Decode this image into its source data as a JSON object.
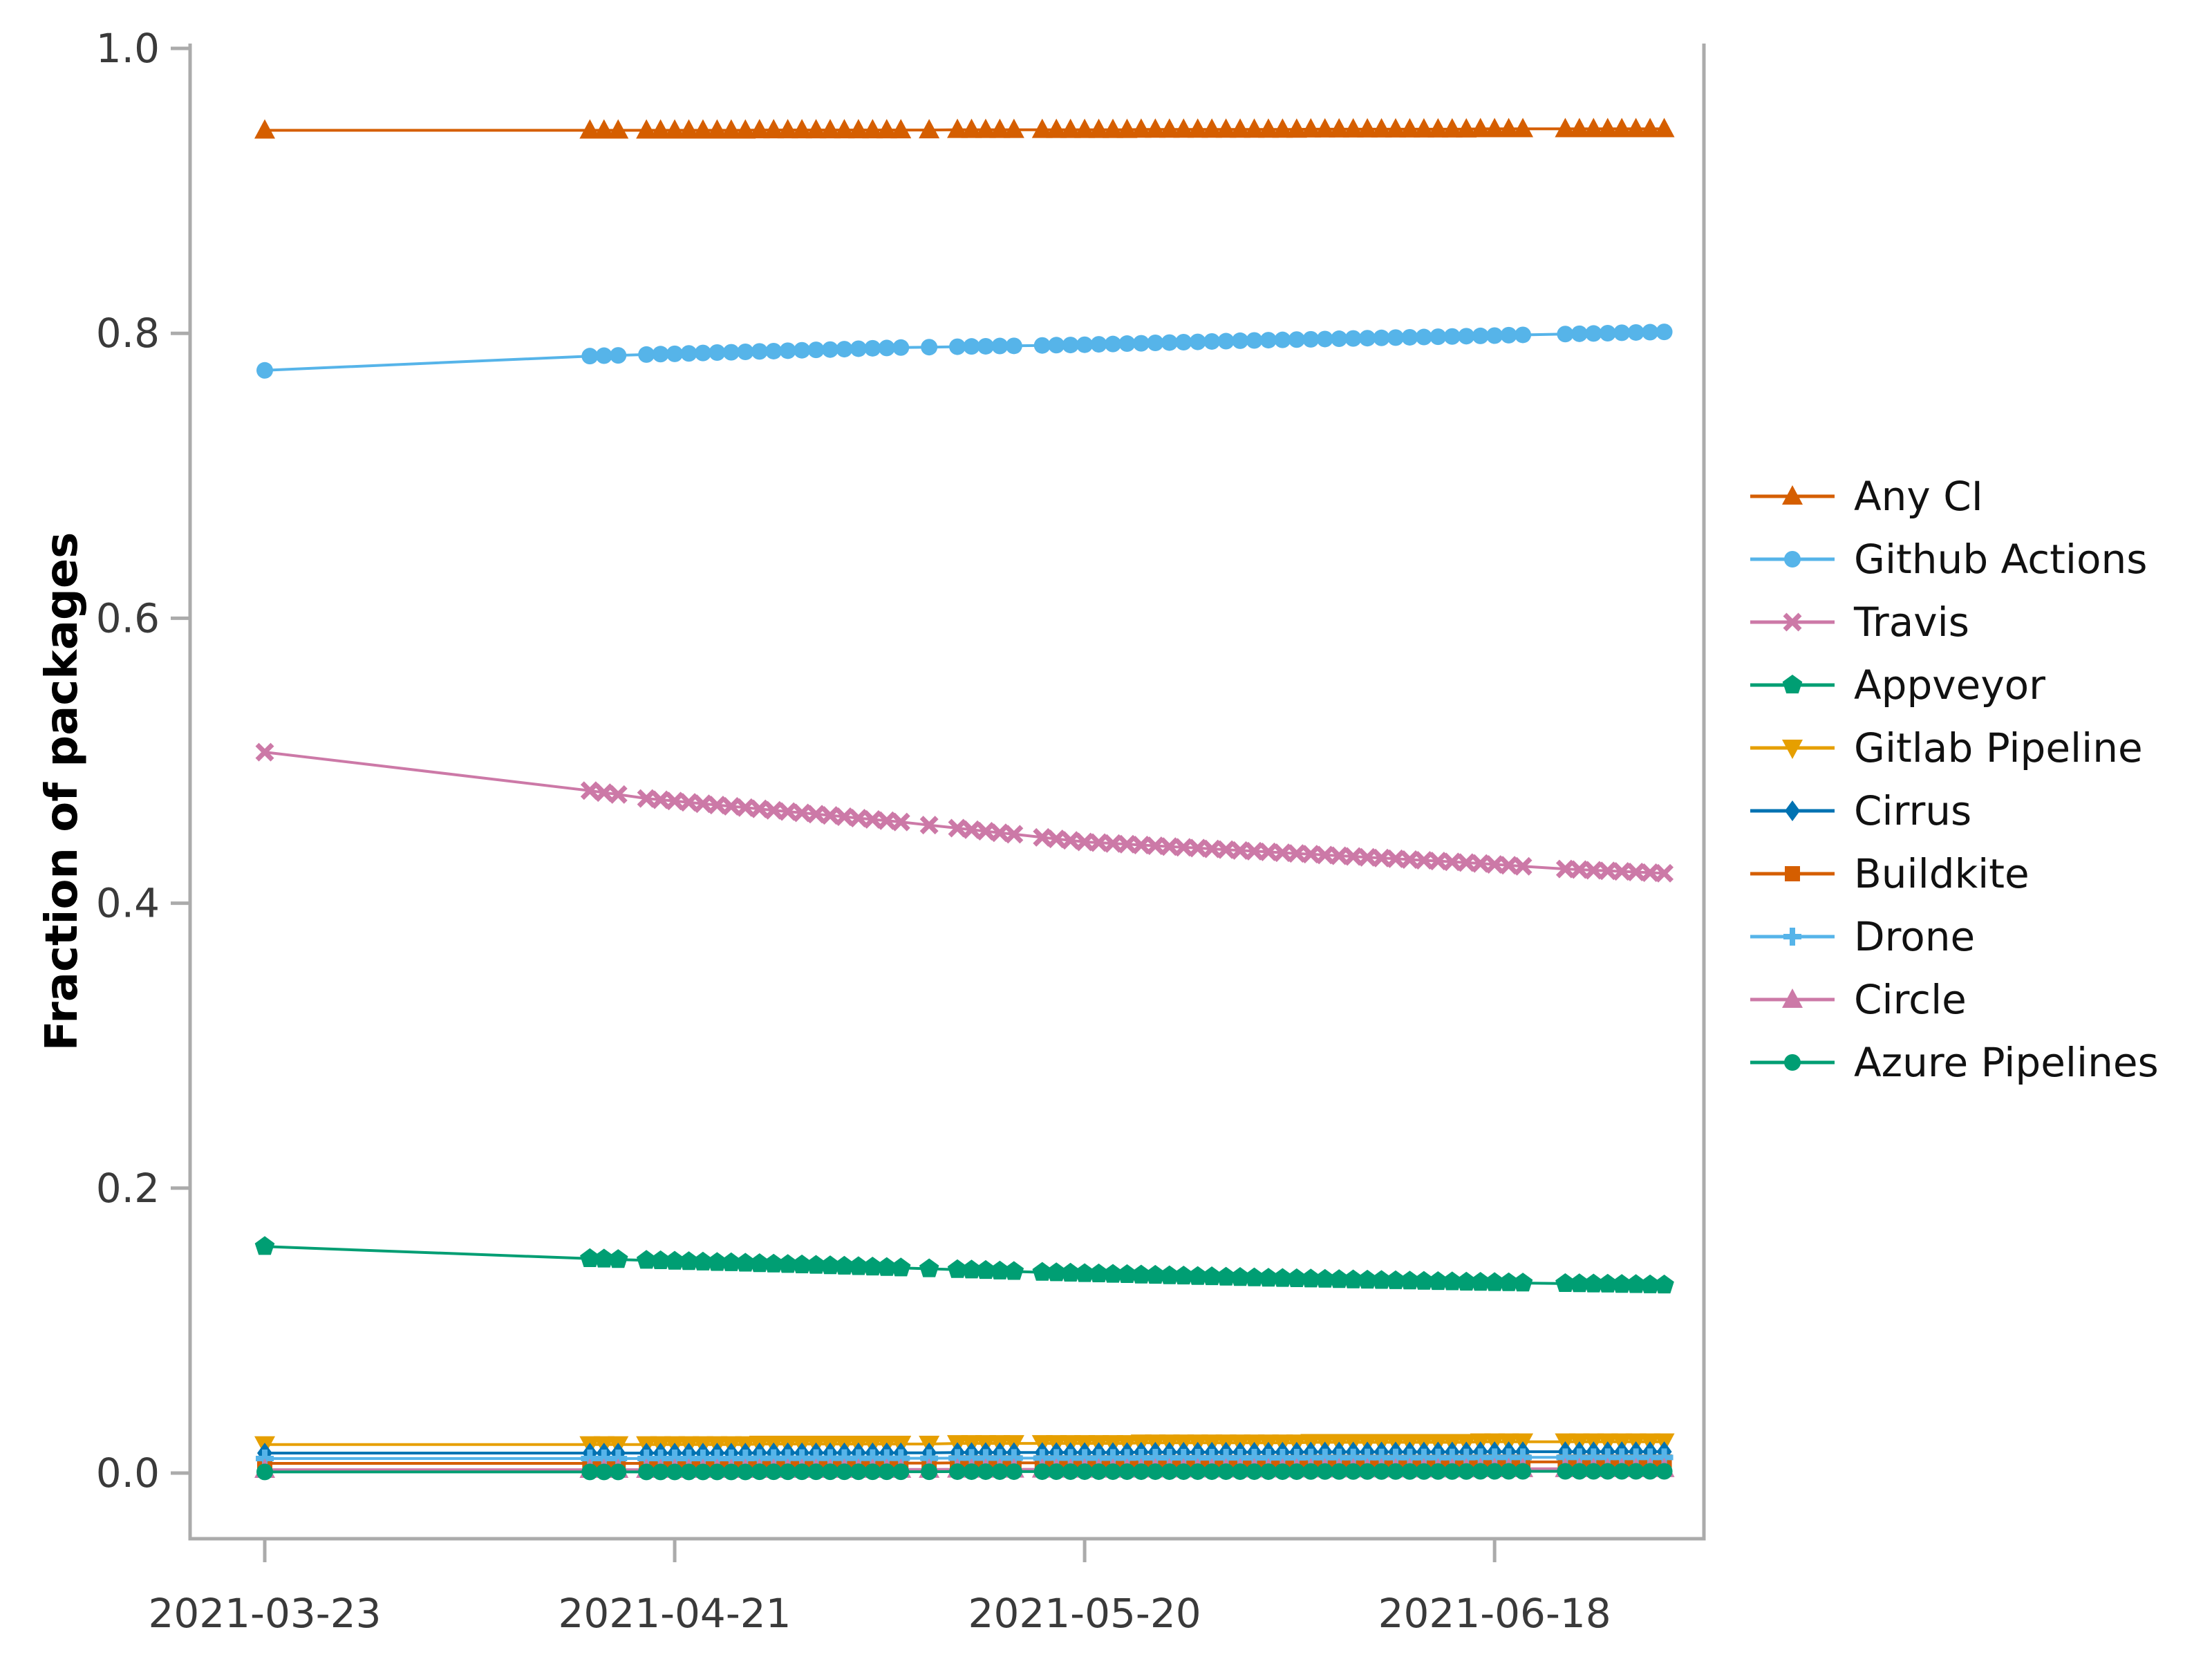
{
  "figure": {
    "ylabel": "Fraction of packages"
  },
  "axis": {
    "y_ticks": [
      "0.0",
      "0.2",
      "0.4",
      "0.6",
      "0.8",
      "1.0"
    ],
    "y_tick_values": [
      0.0,
      0.2,
      0.4,
      0.6,
      0.8,
      1.0
    ],
    "x_ticks": [
      "2021-03-23",
      "2021-04-21",
      "2021-05-20",
      "2021-06-18"
    ],
    "spine_color": "#ababab",
    "tick_color": "#ababab",
    "tick_label_color": "#3a3a3a"
  },
  "chart_data": {
    "type": "line",
    "title": "",
    "xlabel": "",
    "ylabel": "Fraction of packages",
    "ylim": [
      0.0,
      1.0
    ],
    "grid": false,
    "legend_position": "right",
    "x": [
      "2021-03-23",
      "2021-04-15",
      "2021-04-16",
      "2021-04-17",
      "2021-04-19",
      "2021-04-20",
      "2021-04-21",
      "2021-04-22",
      "2021-04-23",
      "2021-04-24",
      "2021-04-25",
      "2021-04-26",
      "2021-04-27",
      "2021-04-28",
      "2021-04-29",
      "2021-04-30",
      "2021-05-01",
      "2021-05-02",
      "2021-05-03",
      "2021-05-04",
      "2021-05-05",
      "2021-05-06",
      "2021-05-07",
      "2021-05-09",
      "2021-05-11",
      "2021-05-12",
      "2021-05-13",
      "2021-05-14",
      "2021-05-15",
      "2021-05-17",
      "2021-05-18",
      "2021-05-19",
      "2021-05-20",
      "2021-05-21",
      "2021-05-22",
      "2021-05-23",
      "2021-05-24",
      "2021-05-25",
      "2021-05-26",
      "2021-05-27",
      "2021-05-28",
      "2021-05-29",
      "2021-05-30",
      "2021-05-31",
      "2021-06-01",
      "2021-06-02",
      "2021-06-03",
      "2021-06-04",
      "2021-06-05",
      "2021-06-06",
      "2021-06-07",
      "2021-06-08",
      "2021-06-09",
      "2021-06-10",
      "2021-06-11",
      "2021-06-12",
      "2021-06-13",
      "2021-06-14",
      "2021-06-15",
      "2021-06-16",
      "2021-06-17",
      "2021-06-18",
      "2021-06-19",
      "2021-06-20",
      "2021-06-23",
      "2021-06-24",
      "2021-06-25",
      "2021-06-26",
      "2021-06-27",
      "2021-06-28",
      "2021-06-29",
      "2021-06-30"
    ],
    "series": [
      {
        "name": "Any CI",
        "color": "#D55E00",
        "marker": "triangle-up",
        "values": [
          0.9425,
          0.9425,
          0.9425,
          0.9425,
          0.9425,
          0.9425,
          0.9425,
          0.9425,
          0.9425,
          0.9425,
          0.9425,
          0.9425,
          0.9427,
          0.9427,
          0.9427,
          0.9427,
          0.9427,
          0.9427,
          0.9427,
          0.9427,
          0.9427,
          0.9427,
          0.9427,
          0.9427,
          0.9429,
          0.9429,
          0.9429,
          0.9429,
          0.9429,
          0.9429,
          0.9429,
          0.9429,
          0.9429,
          0.9429,
          0.9429,
          0.9429,
          0.9431,
          0.9431,
          0.9431,
          0.9431,
          0.9431,
          0.9431,
          0.9431,
          0.9431,
          0.9431,
          0.9431,
          0.9431,
          0.9431,
          0.9433,
          0.9433,
          0.9433,
          0.9433,
          0.9433,
          0.9433,
          0.9433,
          0.9433,
          0.9433,
          0.9433,
          0.9433,
          0.9433,
          0.9435,
          0.9435,
          0.9435,
          0.9435,
          0.9435,
          0.9435,
          0.9435,
          0.9435,
          0.9435,
          0.9435,
          0.9435,
          0.9435
        ]
      },
      {
        "name": "Github Actions",
        "color": "#56B4E9",
        "marker": "circle",
        "values": [
          0.774,
          0.784,
          0.7843,
          0.7845,
          0.7851,
          0.7854,
          0.7856,
          0.7859,
          0.7862,
          0.7865,
          0.7867,
          0.787,
          0.7873,
          0.7875,
          0.7878,
          0.7881,
          0.7884,
          0.7886,
          0.7889,
          0.7892,
          0.7895,
          0.7897,
          0.79,
          0.7903,
          0.7906,
          0.7908,
          0.7909,
          0.7911,
          0.7912,
          0.7915,
          0.7917,
          0.7918,
          0.792,
          0.7923,
          0.7925,
          0.7928,
          0.793,
          0.7933,
          0.7935,
          0.7938,
          0.794,
          0.7943,
          0.7945,
          0.7948,
          0.795,
          0.7952,
          0.7954,
          0.7956,
          0.7958,
          0.796,
          0.7962,
          0.7964,
          0.7966,
          0.7968,
          0.797,
          0.7972,
          0.7974,
          0.7976,
          0.7978,
          0.798,
          0.7982,
          0.7984,
          0.7987,
          0.7989,
          0.7995,
          0.7997,
          0.7999,
          0.8001,
          0.8004,
          0.8006,
          0.8008,
          0.801
        ]
      },
      {
        "name": "Travis",
        "color": "#CC79A7",
        "marker": "x",
        "values": [
          0.506,
          0.479,
          0.4776,
          0.4763,
          0.4735,
          0.4726,
          0.4717,
          0.4708,
          0.4698,
          0.4689,
          0.468,
          0.4671,
          0.4662,
          0.4652,
          0.4643,
          0.4634,
          0.4625,
          0.4616,
          0.4607,
          0.4597,
          0.4588,
          0.4579,
          0.457,
          0.4548,
          0.4527,
          0.4516,
          0.4505,
          0.4494,
          0.4484,
          0.4462,
          0.4451,
          0.4441,
          0.443,
          0.4425,
          0.4419,
          0.4414,
          0.4408,
          0.4403,
          0.4397,
          0.4392,
          0.4387,
          0.4381,
          0.4376,
          0.437,
          0.4365,
          0.436,
          0.4354,
          0.4349,
          0.4344,
          0.4338,
          0.4333,
          0.4328,
          0.4322,
          0.4317,
          0.4312,
          0.4306,
          0.4301,
          0.4296,
          0.429,
          0.4285,
          0.4279,
          0.4272,
          0.4266,
          0.4259,
          0.424,
          0.4236,
          0.4231,
          0.4227,
          0.4223,
          0.4219,
          0.4214,
          0.421
        ]
      },
      {
        "name": "Appveyor",
        "color": "#009E73",
        "marker": "pentagon",
        "values": [
          0.159,
          0.1505,
          0.1502,
          0.1499,
          0.1493,
          0.149,
          0.1487,
          0.1484,
          0.1481,
          0.1478,
          0.1476,
          0.1473,
          0.147,
          0.1467,
          0.1464,
          0.1461,
          0.1458,
          0.1455,
          0.1452,
          0.1449,
          0.1446,
          0.1443,
          0.144,
          0.1434,
          0.1428,
          0.1425,
          0.1422,
          0.1418,
          0.1415,
          0.1409,
          0.1406,
          0.1403,
          0.14,
          0.1398,
          0.1395,
          0.1393,
          0.139,
          0.1388,
          0.1385,
          0.1383,
          0.138,
          0.1378,
          0.1375,
          0.1373,
          0.137,
          0.1368,
          0.1366,
          0.1364,
          0.1362,
          0.136,
          0.1358,
          0.1356,
          0.1354,
          0.1352,
          0.135,
          0.1348,
          0.1346,
          0.1344,
          0.1342,
          0.134,
          0.1339,
          0.1337,
          0.1336,
          0.1334,
          0.133,
          0.1329,
          0.1327,
          0.1326,
          0.1324,
          0.1323,
          0.1321,
          0.132
        ]
      },
      {
        "name": "Gitlab Pipeline",
        "color": "#E69F00",
        "marker": "triangle-down",
        "values": [
          0.02,
          0.02,
          0.02,
          0.02,
          0.02,
          0.02,
          0.02,
          0.02,
          0.02,
          0.02,
          0.02,
          0.02,
          0.0204,
          0.0204,
          0.0204,
          0.0204,
          0.0204,
          0.0204,
          0.0204,
          0.0204,
          0.0204,
          0.0204,
          0.0204,
          0.0204,
          0.0208,
          0.0208,
          0.0208,
          0.0208,
          0.0208,
          0.0208,
          0.0208,
          0.0208,
          0.0208,
          0.0208,
          0.0208,
          0.0208,
          0.0212,
          0.0212,
          0.0212,
          0.0212,
          0.0212,
          0.0212,
          0.0212,
          0.0212,
          0.0212,
          0.0212,
          0.0212,
          0.0212,
          0.0216,
          0.0216,
          0.0216,
          0.0216,
          0.0216,
          0.0216,
          0.0216,
          0.0216,
          0.0216,
          0.0216,
          0.0216,
          0.0216,
          0.022,
          0.022,
          0.022,
          0.022,
          0.022,
          0.022,
          0.022,
          0.022,
          0.022,
          0.022,
          0.022,
          0.022
        ]
      },
      {
        "name": "Cirrus",
        "color": "#0072B2",
        "marker": "diamond",
        "values": [
          0.014,
          0.014,
          0.014,
          0.014,
          0.014,
          0.014,
          0.014,
          0.014,
          0.014,
          0.014,
          0.014,
          0.014,
          0.0142,
          0.0142,
          0.0142,
          0.0142,
          0.0142,
          0.0142,
          0.0142,
          0.0142,
          0.0142,
          0.0142,
          0.0142,
          0.0142,
          0.0144,
          0.0144,
          0.0144,
          0.0144,
          0.0144,
          0.0144,
          0.0144,
          0.0144,
          0.0144,
          0.0144,
          0.0144,
          0.0144,
          0.0146,
          0.0146,
          0.0146,
          0.0146,
          0.0146,
          0.0146,
          0.0146,
          0.0146,
          0.0146,
          0.0146,
          0.0146,
          0.0146,
          0.0148,
          0.0148,
          0.0148,
          0.0148,
          0.0148,
          0.0148,
          0.0148,
          0.0148,
          0.0148,
          0.0148,
          0.0148,
          0.0148,
          0.015,
          0.015,
          0.015,
          0.015,
          0.015,
          0.015,
          0.015,
          0.015,
          0.015,
          0.015,
          0.015,
          0.015
        ]
      },
      {
        "name": "Buildkite",
        "color": "#D55E00",
        "marker": "square",
        "values": [
          0.0068,
          0.0068,
          0.0068,
          0.0068,
          0.0068,
          0.0068,
          0.0068,
          0.0068,
          0.0068,
          0.0068,
          0.0068,
          0.0068,
          0.007,
          0.007,
          0.007,
          0.007,
          0.007,
          0.007,
          0.007,
          0.007,
          0.007,
          0.007,
          0.007,
          0.007,
          0.0072,
          0.0072,
          0.0072,
          0.0072,
          0.0072,
          0.0072,
          0.0072,
          0.0072,
          0.0072,
          0.0072,
          0.0072,
          0.0072,
          0.0074,
          0.0074,
          0.0074,
          0.0074,
          0.0074,
          0.0074,
          0.0074,
          0.0074,
          0.0074,
          0.0074,
          0.0074,
          0.0074,
          0.0076,
          0.0076,
          0.0076,
          0.0076,
          0.0076,
          0.0076,
          0.0076,
          0.0076,
          0.0076,
          0.0076,
          0.0076,
          0.0076,
          0.0078,
          0.0078,
          0.0078,
          0.0078,
          0.0078,
          0.0078,
          0.0078,
          0.0078,
          0.0078,
          0.0078,
          0.0078,
          0.0078
        ]
      },
      {
        "name": "Drone",
        "color": "#56B4E9",
        "marker": "plus",
        "values": [
          0.0102,
          0.0102,
          0.0102,
          0.0102,
          0.0102,
          0.0102,
          0.0102,
          0.0102,
          0.0102,
          0.0102,
          0.0102,
          0.0102,
          0.0104,
          0.0104,
          0.0104,
          0.0104,
          0.0104,
          0.0104,
          0.0104,
          0.0104,
          0.0104,
          0.0104,
          0.0104,
          0.0104,
          0.0105,
          0.0105,
          0.0105,
          0.0105,
          0.0105,
          0.0105,
          0.0105,
          0.0105,
          0.0105,
          0.0105,
          0.0105,
          0.0105,
          0.0107,
          0.0107,
          0.0107,
          0.0107,
          0.0107,
          0.0107,
          0.0107,
          0.0107,
          0.0107,
          0.0107,
          0.0107,
          0.0107,
          0.0108,
          0.0108,
          0.0108,
          0.0108,
          0.0108,
          0.0108,
          0.0108,
          0.0108,
          0.0108,
          0.0108,
          0.0108,
          0.0108,
          0.011,
          0.011,
          0.011,
          0.011,
          0.011,
          0.011,
          0.011,
          0.011,
          0.011,
          0.011,
          0.011,
          0.011
        ]
      },
      {
        "name": "Circle",
        "color": "#CC79A7",
        "marker": "triangle-up",
        "values": [
          0.0024,
          0.0024,
          0.0024,
          0.0024,
          0.0024,
          0.0024,
          0.0024,
          0.0024,
          0.0024,
          0.0024,
          0.0024,
          0.0024,
          0.0025,
          0.0025,
          0.0025,
          0.0025,
          0.0025,
          0.0025,
          0.0025,
          0.0025,
          0.0025,
          0.0025,
          0.0025,
          0.0025,
          0.0026,
          0.0026,
          0.0026,
          0.0026,
          0.0026,
          0.0026,
          0.0026,
          0.0026,
          0.0026,
          0.0026,
          0.0026,
          0.0026,
          0.0027,
          0.0027,
          0.0027,
          0.0027,
          0.0027,
          0.0027,
          0.0027,
          0.0027,
          0.0027,
          0.0027,
          0.0027,
          0.0027,
          0.0028,
          0.0028,
          0.0028,
          0.0028,
          0.0028,
          0.0028,
          0.0028,
          0.0028,
          0.0028,
          0.0028,
          0.0028,
          0.0028,
          0.003,
          0.003,
          0.003,
          0.003,
          0.003,
          0.003,
          0.003,
          0.003,
          0.003,
          0.003,
          0.003,
          0.003
        ]
      },
      {
        "name": "Azure Pipelines",
        "color": "#009E73",
        "marker": "circle",
        "values": [
          0.0008,
          0.0008,
          0.0008,
          0.0008,
          0.0008,
          0.0008,
          0.0008,
          0.0008,
          0.0008,
          0.0008,
          0.0008,
          0.0008,
          0.0009,
          0.0009,
          0.0009,
          0.0009,
          0.0009,
          0.0009,
          0.0009,
          0.0009,
          0.0009,
          0.0009,
          0.0009,
          0.0009,
          0.001,
          0.001,
          0.001,
          0.001,
          0.001,
          0.001,
          0.001,
          0.001,
          0.001,
          0.001,
          0.001,
          0.001,
          0.001,
          0.001,
          0.001,
          0.001,
          0.001,
          0.001,
          0.001,
          0.001,
          0.001,
          0.001,
          0.001,
          0.001,
          0.0011,
          0.0011,
          0.0011,
          0.0011,
          0.0011,
          0.0011,
          0.0011,
          0.0011,
          0.0011,
          0.0011,
          0.0011,
          0.0011,
          0.0012,
          0.0012,
          0.0012,
          0.0012,
          0.0012,
          0.0012,
          0.0012,
          0.0012,
          0.0012,
          0.0012,
          0.0012,
          0.0012
        ]
      }
    ]
  }
}
